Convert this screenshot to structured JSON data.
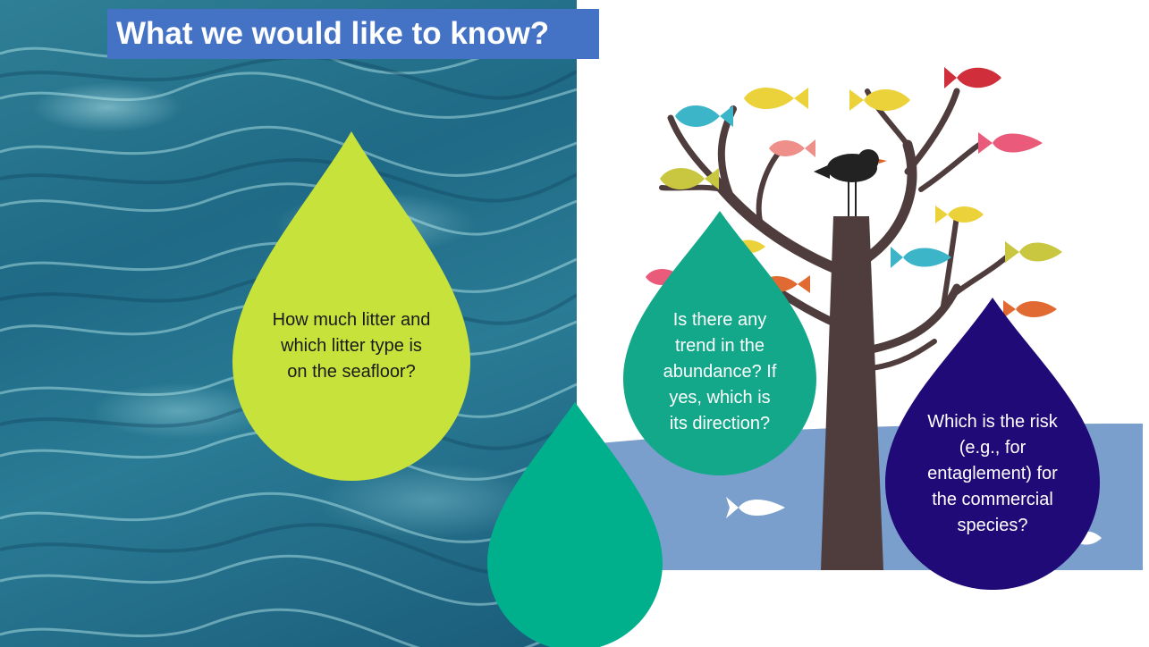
{
  "slide": {
    "title": "What we would like to know?"
  },
  "drops": {
    "litter": {
      "lines": [
        "How much litter and",
        "which litter type is",
        "on the seafloor?"
      ],
      "color": "#c8e23c",
      "text_color": "#1a1a1a"
    },
    "trend": {
      "lines": [
        "Is there any",
        "trend in the",
        "abundance? If",
        "yes, which is",
        "its direction?"
      ],
      "color": "#13a88a",
      "text_color": "#ffffff"
    },
    "risk": {
      "lines": [
        "Which is the risk",
        "(e.g., for",
        "entaglement) for",
        "the commercial",
        "species?"
      ],
      "color": "#200a78",
      "text_color": "#ffffff"
    },
    "lower": {
      "color": "#00b08c"
    }
  },
  "illustration": {
    "sea_color": "#7b9fcc",
    "trunk_color": "#4e3d3c",
    "fish_colors": [
      "#3cb5c9",
      "#ecd23a",
      "#c9c63f",
      "#ee8f8a",
      "#cf2e3a",
      "#ea5b7b",
      "#e06a32",
      "#ffffff"
    ]
  }
}
